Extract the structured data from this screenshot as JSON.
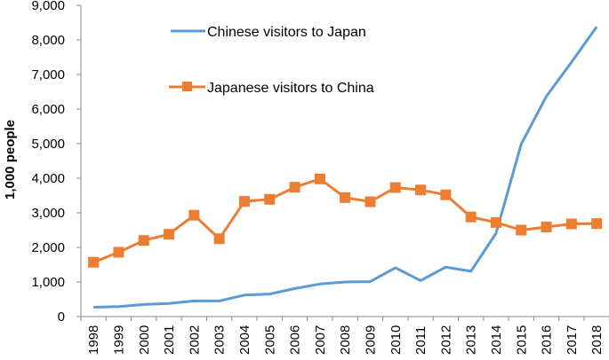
{
  "chart_data": {
    "type": "line",
    "title": "",
    "xlabel": "",
    "ylabel": "1,000 people",
    "ylim": [
      0,
      9000
    ],
    "yticks": [
      0,
      1000,
      2000,
      3000,
      4000,
      5000,
      6000,
      7000,
      8000,
      9000
    ],
    "ytick_labels": [
      "0",
      "1,000",
      "2,000",
      "3,000",
      "4,000",
      "5,000",
      "6,000",
      "7,000",
      "8,000",
      "9,000"
    ],
    "grid": false,
    "legend_position": "top-left inside plot",
    "categories": [
      "1998",
      "1999",
      "2000",
      "2001",
      "2002",
      "2003",
      "2004",
      "2005",
      "2006",
      "2007",
      "2008",
      "2009",
      "2010",
      "2011",
      "2012",
      "2013",
      "2014",
      "2015",
      "2016",
      "2017",
      "2018"
    ],
    "series": [
      {
        "name": "Chinese visitors to Japan",
        "color": "#5B9BD5",
        "marker": "none",
        "values": [
          270,
          290,
          350,
          380,
          450,
          450,
          620,
          650,
          810,
          940,
          1000,
          1010,
          1410,
          1040,
          1430,
          1310,
          2410,
          4990,
          6370,
          7360,
          8380
        ]
      },
      {
        "name": "Japanese visitors to China",
        "color": "#ED7D31",
        "marker": "square",
        "values": [
          1570,
          1860,
          2200,
          2380,
          2930,
          2250,
          3330,
          3390,
          3740,
          3980,
          3440,
          3320,
          3730,
          3660,
          3520,
          2880,
          2720,
          2500,
          2590,
          2680,
          2690
        ]
      }
    ]
  },
  "legend": {
    "items": [
      {
        "label": "Chinese visitors to Japan"
      },
      {
        "label": "Japanese visitors to China"
      }
    ]
  }
}
